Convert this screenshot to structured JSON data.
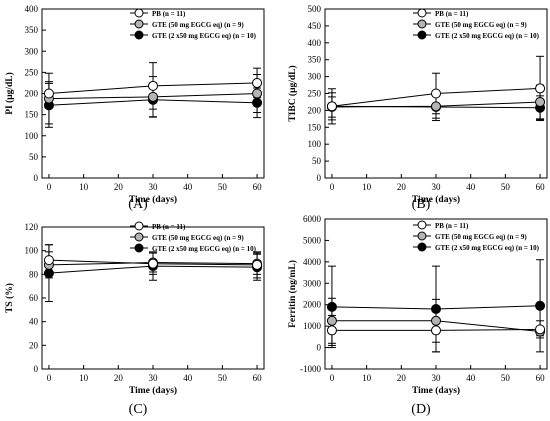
{
  "charts": [
    {
      "letter": "(A)",
      "xlabel": "Time (days)",
      "ylabel": "PI (μg/dL)",
      "xlim": [
        -2,
        62
      ],
      "ylim": [
        0,
        400
      ],
      "xticks": [
        0,
        10,
        20,
        30,
        40,
        50,
        60
      ],
      "yticks": [
        0,
        50,
        100,
        150,
        200,
        250,
        300,
        350,
        400
      ],
      "legend": [
        "PB (n = 11)",
        "GTE (50 mg EGCG eq) (n = 9)",
        "GTE (2 x50 mg EGCG eq) (n = 10)"
      ],
      "series": [
        {
          "marker": "white",
          "x": [
            0,
            30,
            60
          ],
          "y": [
            200,
            218,
            225
          ],
          "err": [
            28,
            55,
            35
          ]
        },
        {
          "marker": "grey",
          "x": [
            0,
            30,
            60
          ],
          "y": [
            188,
            192,
            200
          ],
          "err": [
            60,
            48,
            45
          ]
        },
        {
          "marker": "black",
          "x": [
            0,
            30,
            60
          ],
          "y": [
            172,
            185,
            178
          ],
          "err": [
            52,
            40,
            35
          ]
        }
      ]
    },
    {
      "letter": "(B)",
      "xlabel": "Time (days)",
      "ylabel": "TIBC (μg/dL)",
      "xlim": [
        -2,
        62
      ],
      "ylim": [
        0,
        500
      ],
      "xticks": [
        0,
        10,
        20,
        30,
        40,
        50,
        60
      ],
      "yticks": [
        0,
        50,
        100,
        150,
        200,
        250,
        300,
        350,
        400,
        450,
        500
      ],
      "legend": [
        "PB (n = 11)",
        "GTE (50 mg EGCG eq) (n = 9)",
        "GTE (2 x50 mg EGCG eq) (n = 10)"
      ],
      "series": [
        {
          "marker": "white",
          "x": [
            0,
            30,
            60
          ],
          "y": [
            212,
            250,
            265
          ],
          "err": [
            52,
            60,
            95
          ]
        },
        {
          "marker": "grey",
          "x": [
            0,
            30,
            60
          ],
          "y": [
            210,
            212,
            225
          ],
          "err": [
            30,
            35,
            50
          ]
        },
        {
          "marker": "black",
          "x": [
            0,
            30,
            60
          ],
          "y": [
            212,
            210,
            208
          ],
          "err": [
            40,
            40,
            35
          ]
        }
      ]
    },
    {
      "letter": "(C)",
      "xlabel": "Time (days)",
      "ylabel": "TS (%)",
      "xlim": [
        -2,
        62
      ],
      "ylim": [
        0,
        120
      ],
      "xticks": [
        0,
        10,
        20,
        30,
        40,
        50,
        60
      ],
      "yticks": [
        0,
        20,
        40,
        60,
        80,
        100,
        120
      ],
      "legend": [
        "PB (n = 11)",
        "GTE (50 mg EGCG eq) (n = 9)",
        "GTE (2 x50 mg EGCG eq) (n = 10)"
      ],
      "series": [
        {
          "marker": "white",
          "x": [
            0,
            30,
            60
          ],
          "y": [
            92,
            89,
            88
          ],
          "err": [
            13,
            9,
            11
          ]
        },
        {
          "marker": "grey",
          "x": [
            0,
            30,
            60
          ],
          "y": [
            88,
            90,
            89
          ],
          "err": [
            11,
            8,
            9
          ]
        },
        {
          "marker": "black",
          "x": [
            0,
            30,
            60
          ],
          "y": [
            81,
            87,
            86
          ],
          "err": [
            24,
            12,
            11
          ]
        }
      ]
    },
    {
      "letter": "(D)",
      "xlabel": "Time (days)",
      "ylabel": "Ferritin (ng/mL)",
      "xlim": [
        -2,
        62
      ],
      "ylim": [
        -1000,
        6000
      ],
      "xticks": [
        0,
        10,
        20,
        30,
        40,
        50,
        60
      ],
      "yticks": [
        -1000,
        0,
        1000,
        2000,
        3000,
        4000,
        5000,
        6000
      ],
      "legend": [
        "PB (n = 11)",
        "GTE (50 mg EGCG eq) (n = 9)",
        "GTE (2 x50 mg EGCG eq) (n = 10)"
      ],
      "series": [
        {
          "marker": "white",
          "x": [
            0,
            30,
            60
          ],
          "y": [
            800,
            800,
            850
          ],
          "err": [
            700,
            1000,
            400
          ]
        },
        {
          "marker": "grey",
          "x": [
            0,
            30,
            60
          ],
          "y": [
            1250,
            1250,
            750
          ],
          "err": [
            1050,
            1000,
            200
          ]
        },
        {
          "marker": "black",
          "x": [
            0,
            30,
            60
          ],
          "y": [
            1900,
            1800,
            1950
          ],
          "err": [
            1900,
            2000,
            2150
          ]
        }
      ]
    }
  ],
  "chart_data": [
    {
      "type": "line",
      "title": "(A)",
      "xlabel": "Time (days)",
      "ylabel": "PI (μg/dL)",
      "x": [
        0,
        30,
        60
      ],
      "ylim": [
        0,
        400
      ],
      "series": [
        {
          "name": "PB (n = 11)",
          "values": [
            200,
            218,
            225
          ]
        },
        {
          "name": "GTE (50 mg EGCG eq) (n = 9)",
          "values": [
            188,
            192,
            200
          ]
        },
        {
          "name": "GTE (2 x50 mg EGCG eq) (n = 10)",
          "values": [
            172,
            185,
            178
          ]
        }
      ]
    },
    {
      "type": "line",
      "title": "(B)",
      "xlabel": "Time (days)",
      "ylabel": "TIBC (μg/dL)",
      "x": [
        0,
        30,
        60
      ],
      "ylim": [
        0,
        500
      ],
      "series": [
        {
          "name": "PB (n = 11)",
          "values": [
            212,
            250,
            265
          ]
        },
        {
          "name": "GTE (50 mg EGCG eq) (n = 9)",
          "values": [
            210,
            212,
            225
          ]
        },
        {
          "name": "GTE (2 x50 mg EGCG eq) (n = 10)",
          "values": [
            212,
            210,
            208
          ]
        }
      ]
    },
    {
      "type": "line",
      "title": "(C)",
      "xlabel": "Time (days)",
      "ylabel": "TS (%)",
      "x": [
        0,
        30,
        60
      ],
      "ylim": [
        0,
        120
      ],
      "series": [
        {
          "name": "PB (n = 11)",
          "values": [
            92,
            89,
            88
          ]
        },
        {
          "name": "GTE (50 mg EGCG eq) (n = 9)",
          "values": [
            88,
            90,
            89
          ]
        },
        {
          "name": "GTE (2 x50 mg EGCG eq) (n = 10)",
          "values": [
            81,
            87,
            86
          ]
        }
      ]
    },
    {
      "type": "line",
      "title": "(D)",
      "xlabel": "Time (days)",
      "ylabel": "Ferritin (ng/mL)",
      "x": [
        0,
        30,
        60
      ],
      "ylim": [
        -1000,
        6000
      ],
      "series": [
        {
          "name": "PB (n = 11)",
          "values": [
            800,
            800,
            850
          ]
        },
        {
          "name": "GTE (50 mg EGCG eq) (n = 9)",
          "values": [
            1250,
            1250,
            750
          ]
        },
        {
          "name": "GTE (2 x50 mg EGCG eq) (n = 10)",
          "values": [
            1900,
            1800,
            1950
          ]
        }
      ]
    }
  ],
  "colors": {
    "white": "#ffffff",
    "grey": "#b4b4b4",
    "black": "#000000",
    "stroke": "#000000"
  }
}
